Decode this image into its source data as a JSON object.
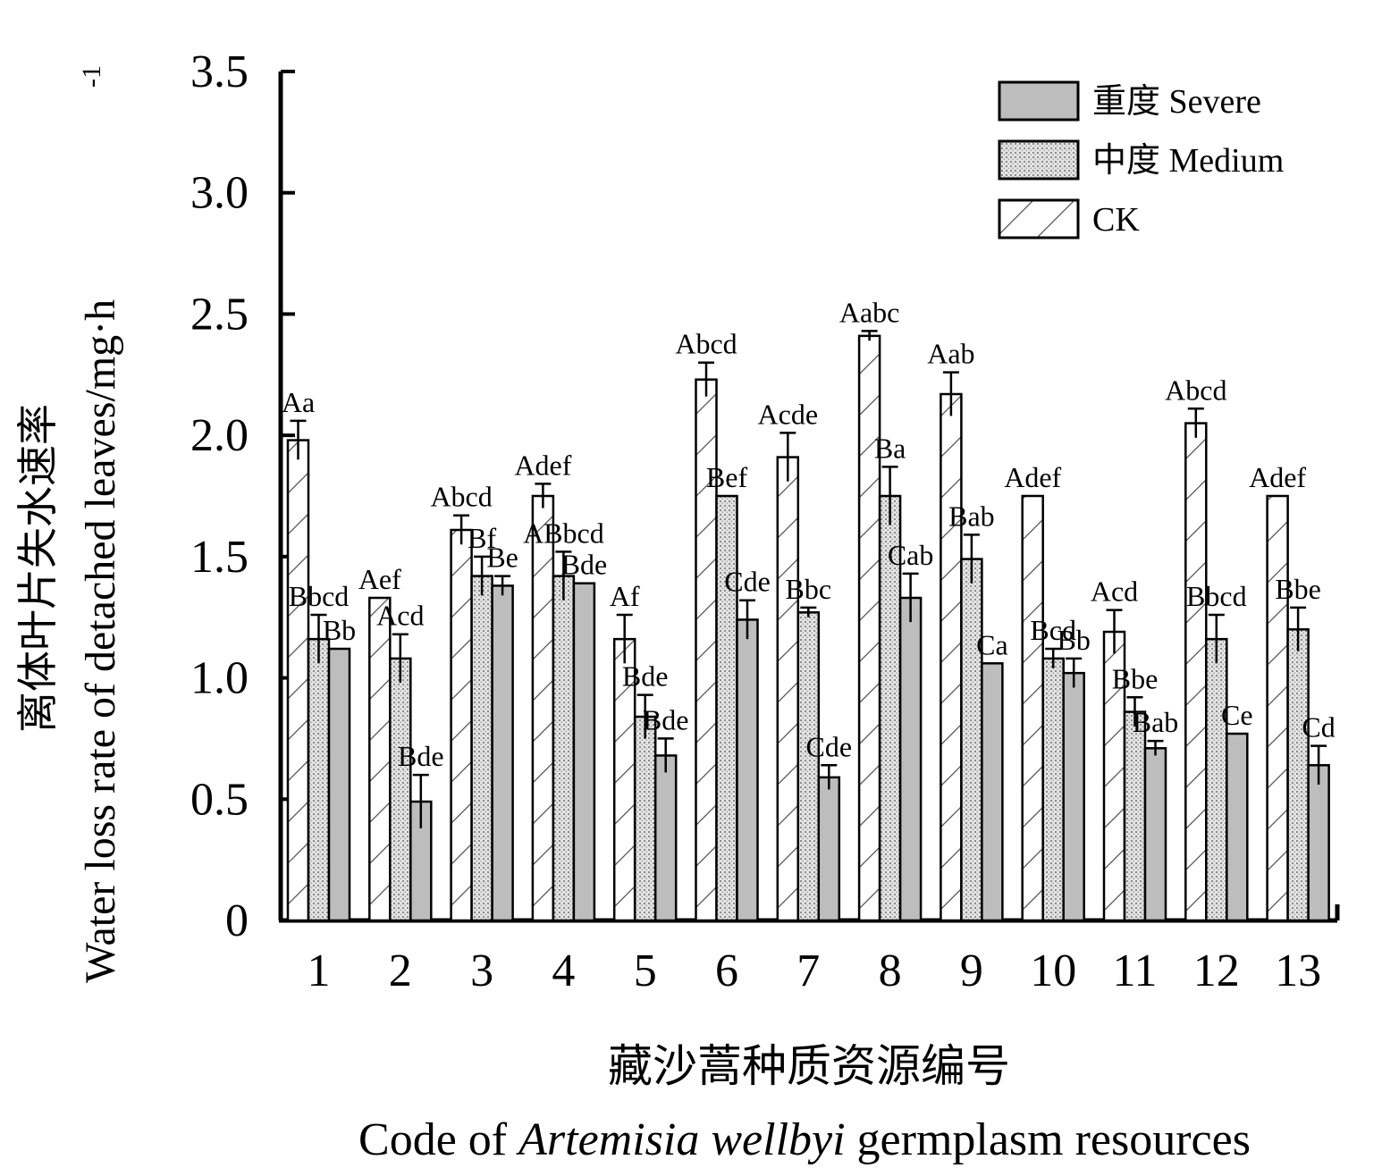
{
  "chart_data": {
    "type": "bar",
    "ylabel_cn": "离体叶片失水速率",
    "ylabel_en": "Water loss rate of detached leaves/mg·h",
    "ylabel_sup": "-1",
    "xlabel_cn": "藏沙蒿种质资源编号",
    "xlabel_en_prefix": "Code of ",
    "xlabel_en_italic": "Artemisia wellbyi",
    "xlabel_en_suffix": " germplasm resources",
    "ylim": [
      0,
      3.5
    ],
    "yticks": [
      0,
      0.5,
      1.0,
      1.5,
      2.0,
      2.5,
      3.0,
      3.5
    ],
    "ytick_labels": [
      "0",
      "0.5",
      "1.0",
      "1.5",
      "2.0",
      "2.5",
      "3.0",
      "3.5"
    ],
    "categories": [
      "1",
      "2",
      "3",
      "4",
      "5",
      "6",
      "7",
      "8",
      "9",
      "10",
      "11",
      "12",
      "13"
    ],
    "legend_position": "top-right",
    "series": [
      {
        "name": "CK",
        "pattern": "hatch",
        "values": [
          1.98,
          1.33,
          1.61,
          1.75,
          1.16,
          2.23,
          1.91,
          2.41,
          2.17,
          1.75,
          1.19,
          2.05,
          1.75
        ],
        "errors": [
          0.08,
          0.0,
          0.06,
          0.05,
          0.1,
          0.07,
          0.1,
          0.02,
          0.09,
          0.0,
          0.09,
          0.06,
          0.0
        ],
        "labels": [
          "Aa",
          "Aef",
          "Abcd",
          "Adef",
          "Af",
          "Abcd",
          "Acde",
          "Aabc",
          "Aab",
          "Adef",
          "Acd",
          "Abcd",
          "Adef"
        ]
      },
      {
        "name": "中度 Medium",
        "pattern": "dots",
        "values": [
          1.16,
          1.08,
          1.42,
          1.42,
          0.84,
          1.75,
          1.27,
          1.75,
          1.49,
          1.08,
          0.86,
          1.16,
          1.2
        ],
        "errors": [
          0.1,
          0.1,
          0.08,
          0.1,
          0.09,
          0.0,
          0.02,
          0.12,
          0.1,
          0.04,
          0.06,
          0.1,
          0.09
        ],
        "labels": [
          "Bbcd",
          "Acd",
          "Bf",
          "ABbcd",
          "Bde",
          "Bef",
          "Bbc",
          "Ba",
          "Bab",
          "Bcd",
          "Bbe",
          "Bbcd",
          "Bbe"
        ]
      },
      {
        "name": "重度 Severe",
        "pattern": "solid",
        "values": [
          1.12,
          0.49,
          1.38,
          1.39,
          0.68,
          1.24,
          0.59,
          1.33,
          1.06,
          1.02,
          0.71,
          0.77,
          0.64
        ],
        "errors": [
          0.0,
          0.11,
          0.04,
          0.0,
          0.07,
          0.08,
          0.05,
          0.1,
          0.0,
          0.06,
          0.03,
          0.0,
          0.08
        ],
        "labels": [
          "Bb",
          "Bde",
          "Be",
          "Bde",
          "Bde",
          "Cde",
          "Cde",
          "Cab",
          "Ca",
          "Bb",
          "Bab",
          "Ce",
          "Cd"
        ]
      }
    ],
    "legend_entries": [
      "重度 Severe",
      "中度 Medium",
      "CK"
    ],
    "colors": {
      "severe": "#bdbdbd",
      "medium": "#d9d9d9",
      "ck": "#ffffff",
      "axis": "#000000"
    }
  }
}
